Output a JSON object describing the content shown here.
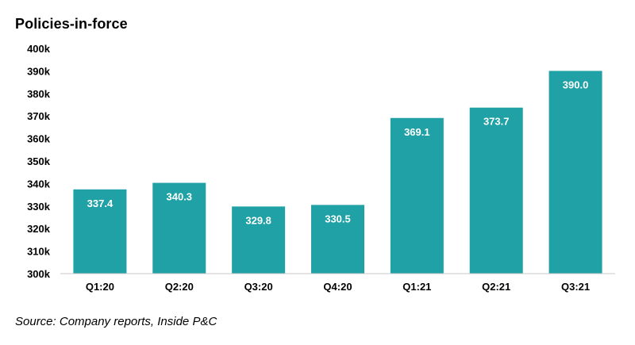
{
  "chart_data": {
    "type": "bar",
    "title": "Policies-in-force",
    "categories": [
      "Q1:20",
      "Q2:20",
      "Q3:20",
      "Q4:20",
      "Q1:21",
      "Q2:21",
      "Q3:21"
    ],
    "values": [
      337.4,
      340.3,
      329.8,
      330.5,
      369.1,
      373.7,
      390.0
    ],
    "value_labels": [
      "337.4",
      "340.3",
      "329.8",
      "330.5",
      "369.1",
      "373.7",
      "390.0"
    ],
    "ylim": [
      300,
      400
    ],
    "yticks": [
      300,
      310,
      320,
      330,
      340,
      350,
      360,
      370,
      380,
      390,
      400
    ],
    "ytick_labels": [
      "300k",
      "310k",
      "320k",
      "330k",
      "340k",
      "350k",
      "360k",
      "370k",
      "380k",
      "390k",
      "400k"
    ],
    "xlabel": "",
    "ylabel": "",
    "grid": false,
    "bar_color": "#1fa1a5",
    "label_color": "#ffffff"
  },
  "source": "Source: Company reports, Inside P&C"
}
